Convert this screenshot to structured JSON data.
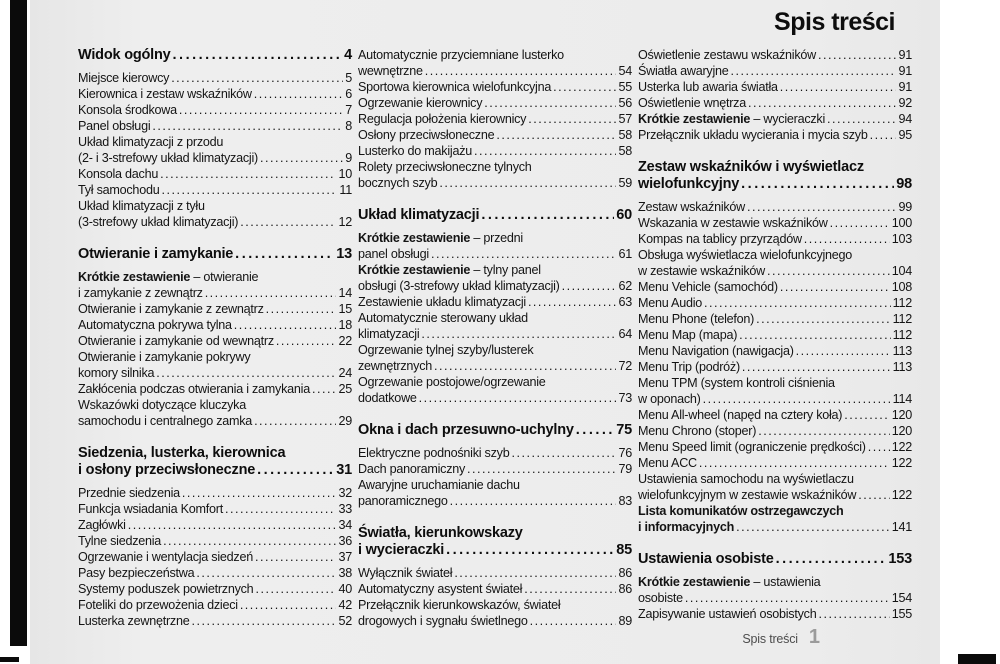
{
  "page_title": "Spis treści",
  "footer": {
    "label": "Spis treści",
    "page_number": "1"
  },
  "columns": [
    {
      "blocks": [
        {
          "type": "section",
          "lines": [
            "Widok ogólny"
          ],
          "page": "4"
        },
        {
          "type": "entry",
          "lines": [
            "Miejsce kierowcy"
          ],
          "page": "5"
        },
        {
          "type": "entry",
          "lines": [
            "Kierownica i zestaw wskaźników"
          ],
          "page": "6"
        },
        {
          "type": "entry",
          "lines": [
            "Konsola środkowa"
          ],
          "page": "7"
        },
        {
          "type": "entry",
          "lines": [
            "Panel obsługi"
          ],
          "page": "8"
        },
        {
          "type": "entry",
          "lines": [
            "Układ klimatyzacji z przodu",
            "(2- i 3-strefowy układ klimatyzacji)"
          ],
          "page": "9"
        },
        {
          "type": "entry",
          "lines": [
            "Konsola dachu"
          ],
          "page": "10"
        },
        {
          "type": "entry",
          "lines": [
            "Tył samochodu"
          ],
          "page": "11"
        },
        {
          "type": "entry",
          "lines": [
            "Układ klimatyzacji z tyłu",
            "(3-strefowy układ klimatyzacji)"
          ],
          "page": "12"
        },
        {
          "type": "section",
          "lines": [
            "Otwieranie i zamykanie"
          ],
          "page": "13"
        },
        {
          "type": "entry",
          "bold_lead": "Krótkie zestawienie",
          "lines": [
            " – otwieranie",
            "i zamykanie z zewnątrz"
          ],
          "page": "14"
        },
        {
          "type": "entry",
          "lines": [
            "Otwieranie i zamykanie z zewnątrz"
          ],
          "page": "15"
        },
        {
          "type": "entry",
          "lines": [
            "Automatyczna pokrywa tylna"
          ],
          "page": "18"
        },
        {
          "type": "entry",
          "lines": [
            "Otwieranie i zamykanie od wewnątrz"
          ],
          "page": "22"
        },
        {
          "type": "entry",
          "lines": [
            "Otwieranie i zamykanie pokrywy",
            "komory silnika"
          ],
          "page": "24"
        },
        {
          "type": "entry",
          "lines": [
            "Zakłócenia podczas otwierania i zamykania"
          ],
          "page": "25"
        },
        {
          "type": "entry",
          "lines": [
            "Wskazówki dotyczące kluczyka",
            "samochodu i centralnego zamka"
          ],
          "page": "29"
        },
        {
          "type": "section",
          "lines": [
            "Siedzenia, lusterka, kierownica",
            "i osłony przeciwsłoneczne"
          ],
          "page": "31"
        },
        {
          "type": "entry",
          "lines": [
            "Przednie siedzenia"
          ],
          "page": "32"
        },
        {
          "type": "entry",
          "lines": [
            "Funkcja wsiadania Komfort"
          ],
          "page": "33"
        },
        {
          "type": "entry",
          "lines": [
            "Zagłówki"
          ],
          "page": "34"
        },
        {
          "type": "entry",
          "lines": [
            "Tylne siedzenia"
          ],
          "page": "36"
        },
        {
          "type": "entry",
          "lines": [
            "Ogrzewanie i wentylacja siedzeń"
          ],
          "page": "37"
        },
        {
          "type": "entry",
          "lines": [
            "Pasy bezpieczeństwa"
          ],
          "page": "38"
        },
        {
          "type": "entry",
          "lines": [
            "Systemy poduszek powietrznych"
          ],
          "page": "40"
        },
        {
          "type": "entry",
          "lines": [
            "Foteliki do przewożenia dzieci"
          ],
          "page": "42"
        },
        {
          "type": "entry",
          "lines": [
            "Lusterka zewnętrzne"
          ],
          "page": "52"
        }
      ]
    },
    {
      "blocks": [
        {
          "type": "entry",
          "lines": [
            "Automatycznie przyciemniane lusterko",
            "wewnętrzne"
          ],
          "page": "54"
        },
        {
          "type": "entry",
          "lines": [
            "Sportowa kierownica wielofunkcyjna"
          ],
          "page": "55"
        },
        {
          "type": "entry",
          "lines": [
            "Ogrzewanie kierownicy"
          ],
          "page": "56"
        },
        {
          "type": "entry",
          "lines": [
            "Regulacja położenia kierownicy"
          ],
          "page": "57"
        },
        {
          "type": "entry",
          "lines": [
            "Osłony przeciwsłoneczne"
          ],
          "page": "58"
        },
        {
          "type": "entry",
          "lines": [
            "Lusterko do makijażu"
          ],
          "page": "58"
        },
        {
          "type": "entry",
          "lines": [
            "Rolety przeciwsłoneczne tylnych",
            "bocznych szyb"
          ],
          "page": "59"
        },
        {
          "type": "section",
          "lines": [
            "Układ klimatyzacji"
          ],
          "page": "60"
        },
        {
          "type": "entry",
          "bold_lead": "Krótkie zestawienie",
          "lines": [
            " – przedni",
            "panel obsługi"
          ],
          "page": "61"
        },
        {
          "type": "entry",
          "bold_lead": "Krótkie zestawienie",
          "lines": [
            " – tylny panel",
            "obsługi (3-strefowy układ klimatyzacji)"
          ],
          "page": "62"
        },
        {
          "type": "entry",
          "lines": [
            "Zestawienie układu klimatyzacji"
          ],
          "page": "63"
        },
        {
          "type": "entry",
          "lines": [
            "Automatycznie sterowany układ",
            "klimatyzacji"
          ],
          "page": "64"
        },
        {
          "type": "entry",
          "lines": [
            "Ogrzewanie tylnej szyby/lusterek",
            "zewnętrznych"
          ],
          "page": "72"
        },
        {
          "type": "entry",
          "lines": [
            "Ogrzewanie postojowe/ogrzewanie",
            "dodatkowe"
          ],
          "page": "73"
        },
        {
          "type": "section",
          "lines": [
            "Okna i dach przesuwno-uchylny"
          ],
          "page": "75"
        },
        {
          "type": "entry",
          "lines": [
            "Elektryczne podnośniki szyb"
          ],
          "page": "76"
        },
        {
          "type": "entry",
          "lines": [
            "Dach panoramiczny"
          ],
          "page": "79"
        },
        {
          "type": "entry",
          "lines": [
            "Awaryjne uruchamianie dachu",
            "panoramicznego"
          ],
          "page": "83"
        },
        {
          "type": "section",
          "lines": [
            "Światła, kierunkowskazy",
            "i wycieraczki"
          ],
          "page": "85"
        },
        {
          "type": "entry",
          "lines": [
            "Wyłącznik świateł"
          ],
          "page": "86"
        },
        {
          "type": "entry",
          "lines": [
            "Automatyczny asystent świateł"
          ],
          "page": "86"
        },
        {
          "type": "entry",
          "lines": [
            "Przełącznik kierunkowskazów, świateł",
            "drogowych i sygnału świetlnego"
          ],
          "page": "89"
        }
      ]
    },
    {
      "blocks": [
        {
          "type": "entry",
          "lines": [
            "Oświetlenie zestawu wskaźników"
          ],
          "page": "91"
        },
        {
          "type": "entry",
          "lines": [
            "Światła awaryjne"
          ],
          "page": "91"
        },
        {
          "type": "entry",
          "lines": [
            "Usterka lub awaria światła"
          ],
          "page": "91"
        },
        {
          "type": "entry",
          "lines": [
            "Oświetlenie wnętrza"
          ],
          "page": "92"
        },
        {
          "type": "entry",
          "bold_lead": "Krótkie zestawienie",
          "lines": [
            " – wycieraczki"
          ],
          "page": "94"
        },
        {
          "type": "entry",
          "lines": [
            "Przełącznik układu wycierania i mycia szyb"
          ],
          "page": "95"
        },
        {
          "type": "section",
          "lines": [
            "Zestaw wskaźników i wyświetlacz",
            "wielofunkcyjny"
          ],
          "page": "98"
        },
        {
          "type": "entry",
          "lines": [
            "Zestaw wskaźników"
          ],
          "page": "99"
        },
        {
          "type": "entry",
          "lines": [
            "Wskazania w zestawie wskaźników"
          ],
          "page": "100"
        },
        {
          "type": "entry",
          "lines": [
            "Kompas na tablicy przyrządów"
          ],
          "page": "103"
        },
        {
          "type": "entry",
          "lines": [
            "Obsługa wyświetlacza wielofunkcyjnego",
            "w zestawie wskaźników"
          ],
          "page": "104"
        },
        {
          "type": "entry",
          "lines": [
            "Menu Vehicle (samochód)"
          ],
          "page": "108"
        },
        {
          "type": "entry",
          "lines": [
            "Menu Audio"
          ],
          "page": "112"
        },
        {
          "type": "entry",
          "lines": [
            "Menu Phone (telefon)"
          ],
          "page": "112"
        },
        {
          "type": "entry",
          "lines": [
            "Menu Map (mapa)"
          ],
          "page": "112"
        },
        {
          "type": "entry",
          "lines": [
            "Menu Navigation (nawigacja)"
          ],
          "page": "113"
        },
        {
          "type": "entry",
          "lines": [
            "Menu Trip (podróż)"
          ],
          "page": "113"
        },
        {
          "type": "entry",
          "lines": [
            "Menu TPM (system kontroli ciśnienia",
            "w oponach)"
          ],
          "page": "114"
        },
        {
          "type": "entry",
          "lines": [
            "Menu All-wheel (napęd na cztery koła)"
          ],
          "page": "120"
        },
        {
          "type": "entry",
          "lines": [
            "Menu Chrono (stoper)"
          ],
          "page": "120"
        },
        {
          "type": "entry",
          "lines": [
            "Menu Speed limit (ograniczenie prędkości)"
          ],
          "page": "122"
        },
        {
          "type": "entry",
          "lines": [
            "Menu ACC"
          ],
          "page": "122"
        },
        {
          "type": "entry",
          "lines": [
            "Ustawienia samochodu na wyświetlaczu",
            "wielofunkcyjnym w zestawie wskaźników"
          ],
          "page": "122"
        },
        {
          "type": "entry",
          "bold": true,
          "lines": [
            "Lista komunikatów ostrzegawczych",
            "i informacyjnych"
          ],
          "page": "141"
        },
        {
          "type": "section",
          "lines": [
            "Ustawienia osobiste"
          ],
          "page": "153"
        },
        {
          "type": "entry",
          "bold_lead": "Krótkie zestawienie",
          "lines": [
            " – ustawienia",
            "osobiste"
          ],
          "page": "154"
        },
        {
          "type": "entry",
          "lines": [
            "Zapisywanie ustawień osobistych"
          ],
          "page": "155"
        }
      ]
    }
  ]
}
